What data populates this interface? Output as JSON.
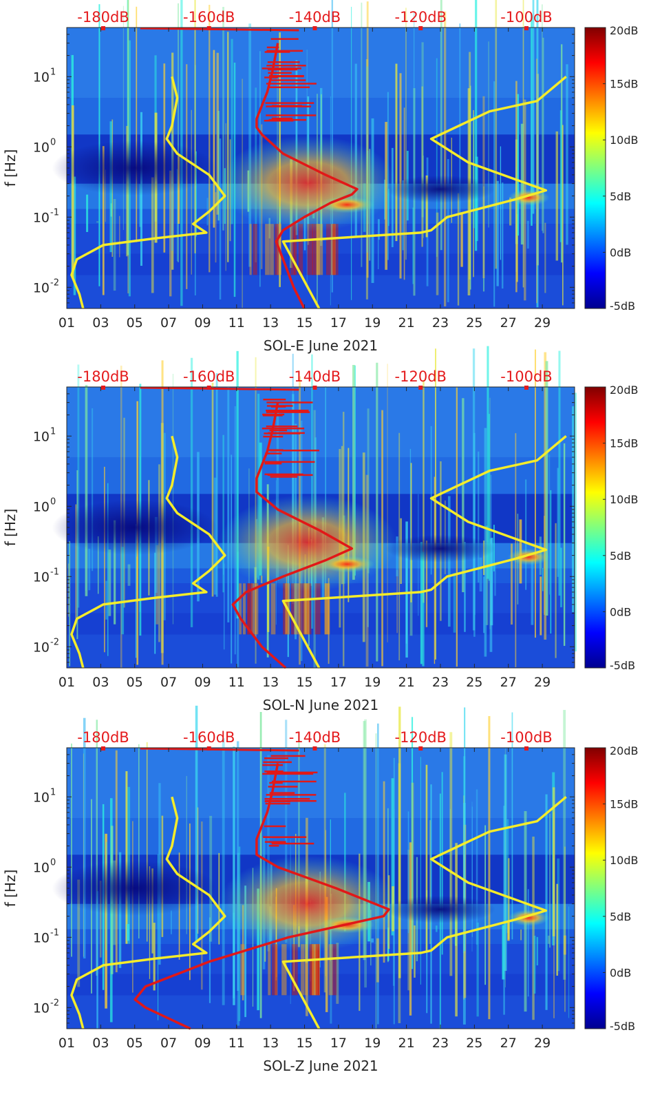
{
  "chart_data": [
    {
      "type": "heatmap",
      "xlabel": "SOL-E June 2021",
      "ylabel": "f [Hz]",
      "x_tick_labels": [
        "01",
        "03",
        "05",
        "07",
        "09",
        "11",
        "13",
        "15",
        "17",
        "19",
        "21",
        "23",
        "25",
        "27",
        "29"
      ],
      "xlim": [
        1,
        30.9
      ],
      "ylim_hz": [
        0.005,
        50
      ],
      "ylog": true,
      "y_tick_labels": [
        "10^-2",
        "10^-1",
        "10^0",
        "10^1"
      ],
      "y_ticks_hz": [
        0.01,
        0.1,
        1,
        10
      ],
      "top_axis_labels": [
        "-180dB",
        "-160dB",
        "-140dB",
        "-120dB",
        "-100dB"
      ],
      "top_axis_db": [
        -180,
        -160,
        -140,
        -120,
        -100
      ],
      "colorbar_labels": [
        "-5dB",
        "0dB",
        "5dB",
        "10dB",
        "15dB",
        "20dB"
      ],
      "colorbar_values": [
        -5,
        0,
        5,
        10,
        15,
        20
      ],
      "yellow_left_db_freq": [
        [
          -183.8,
          0.005
        ],
        [
          -184.5,
          0.008
        ],
        [
          -186,
          0.015
        ],
        [
          -185,
          0.025
        ],
        [
          -180,
          0.04
        ],
        [
          -170,
          0.05
        ],
        [
          -160.5,
          0.06
        ],
        [
          -163,
          0.08
        ],
        [
          -160,
          0.12
        ],
        [
          -157,
          0.2
        ],
        [
          -160,
          0.4
        ],
        [
          -166,
          0.8
        ],
        [
          -168,
          1.3
        ],
        [
          -167,
          2
        ],
        [
          -166,
          5
        ],
        [
          -167,
          10
        ]
      ],
      "yellow_right_db_freq": [
        [
          -139.2,
          0.005
        ],
        [
          -146,
          0.045
        ],
        [
          -120,
          0.06
        ],
        [
          -118,
          0.065
        ],
        [
          -115,
          0.1
        ],
        [
          -102,
          0.18
        ],
        [
          -96.3,
          0.24
        ],
        [
          -111,
          0.6
        ],
        [
          -118,
          1.3
        ],
        [
          -107,
          3.2
        ],
        [
          -98,
          4.5
        ],
        [
          -92.5,
          10
        ]
      ],
      "red_db_freq": [
        [
          -142,
          0.005
        ],
        [
          -144,
          0.01
        ],
        [
          -146,
          0.025
        ],
        [
          -147.3,
          0.045
        ],
        [
          -146,
          0.065
        ],
        [
          -142,
          0.1
        ],
        [
          -137,
          0.16
        ],
        [
          -133,
          0.21
        ],
        [
          -132,
          0.25
        ],
        [
          -138,
          0.4
        ],
        [
          -146,
          0.8
        ],
        [
          -150,
          1.5
        ],
        [
          -151,
          1.9
        ],
        [
          -151,
          2.5
        ],
        [
          -149,
          6
        ],
        [
          -148,
          12
        ],
        [
          -147,
          30
        ]
      ]
    },
    {
      "type": "heatmap",
      "xlabel": "SOL-N June 2021",
      "ylabel": "f [Hz]",
      "x_tick_labels": [
        "01",
        "03",
        "05",
        "07",
        "09",
        "11",
        "13",
        "15",
        "17",
        "19",
        "21",
        "23",
        "25",
        "27",
        "29"
      ],
      "xlim": [
        1,
        30.9
      ],
      "ylim_hz": [
        0.005,
        50
      ],
      "ylog": true,
      "y_tick_labels": [
        "10^-2",
        "10^-1",
        "10^0",
        "10^1"
      ],
      "y_ticks_hz": [
        0.01,
        0.1,
        1,
        10
      ],
      "top_axis_labels": [
        "-180dB",
        "-160dB",
        "-140dB",
        "-120dB",
        "-100dB"
      ],
      "top_axis_db": [
        -180,
        -160,
        -140,
        -120,
        -100
      ],
      "colorbar_labels": [
        "-5dB",
        "0dB",
        "5dB",
        "10dB",
        "15dB",
        "20dB"
      ],
      "colorbar_values": [
        -5,
        0,
        5,
        10,
        15,
        20
      ],
      "yellow_left_db_freq": [
        [
          -183.8,
          0.005
        ],
        [
          -184.5,
          0.008
        ],
        [
          -186,
          0.015
        ],
        [
          -185,
          0.025
        ],
        [
          -180,
          0.04
        ],
        [
          -170,
          0.05
        ],
        [
          -160.5,
          0.06
        ],
        [
          -163,
          0.08
        ],
        [
          -160,
          0.12
        ],
        [
          -157,
          0.2
        ],
        [
          -160,
          0.4
        ],
        [
          -166,
          0.8
        ],
        [
          -168,
          1.3
        ],
        [
          -167,
          2
        ],
        [
          -166,
          5
        ],
        [
          -167,
          10
        ]
      ],
      "yellow_right_db_freq": [
        [
          -139.2,
          0.005
        ],
        [
          -146,
          0.045
        ],
        [
          -120,
          0.06
        ],
        [
          -118,
          0.065
        ],
        [
          -115,
          0.1
        ],
        [
          -102,
          0.18
        ],
        [
          -96.3,
          0.24
        ],
        [
          -111,
          0.6
        ],
        [
          -118,
          1.3
        ],
        [
          -107,
          3.2
        ],
        [
          -98,
          4.5
        ],
        [
          -92.5,
          10
        ]
      ],
      "red_db_freq": [
        [
          -145.5,
          0.005
        ],
        [
          -150,
          0.01
        ],
        [
          -154,
          0.025
        ],
        [
          -155.5,
          0.04
        ],
        [
          -153,
          0.06
        ],
        [
          -146,
          0.1
        ],
        [
          -138,
          0.17
        ],
        [
          -133,
          0.25
        ],
        [
          -139,
          0.45
        ],
        [
          -147,
          0.9
        ],
        [
          -151,
          1.6
        ],
        [
          -151,
          2.5
        ],
        [
          -149,
          6
        ],
        [
          -148,
          12
        ],
        [
          -147,
          30
        ]
      ]
    },
    {
      "type": "heatmap",
      "xlabel": "SOL-Z June 2021",
      "ylabel": "f [Hz]",
      "x_tick_labels": [
        "01",
        "03",
        "05",
        "07",
        "09",
        "11",
        "13",
        "15",
        "17",
        "19",
        "21",
        "23",
        "25",
        "27",
        "29"
      ],
      "xlim": [
        1,
        30.9
      ],
      "ylim_hz": [
        0.005,
        50
      ],
      "ylog": true,
      "y_tick_labels": [
        "10^-2",
        "10^-1",
        "10^0",
        "10^1"
      ],
      "y_ticks_hz": [
        0.01,
        0.1,
        1,
        10
      ],
      "top_axis_labels": [
        "-180dB",
        "-160dB",
        "-140dB",
        "-120dB",
        "-100dB"
      ],
      "top_axis_db": [
        -180,
        -160,
        -140,
        -120,
        -100
      ],
      "colorbar_labels": [
        "-5dB",
        "0dB",
        "5dB",
        "10dB",
        "15dB",
        "20dB"
      ],
      "colorbar_values": [
        -5,
        0,
        5,
        10,
        15,
        20
      ],
      "yellow_left_db_freq": [
        [
          -183.8,
          0.005
        ],
        [
          -184.5,
          0.008
        ],
        [
          -186,
          0.015
        ],
        [
          -185,
          0.025
        ],
        [
          -180,
          0.04
        ],
        [
          -170,
          0.05
        ],
        [
          -160.5,
          0.06
        ],
        [
          -163,
          0.08
        ],
        [
          -160,
          0.12
        ],
        [
          -157,
          0.2
        ],
        [
          -160,
          0.4
        ],
        [
          -166,
          0.8
        ],
        [
          -168,
          1.3
        ],
        [
          -167,
          2
        ],
        [
          -166,
          5
        ],
        [
          -167,
          10
        ]
      ],
      "yellow_right_db_freq": [
        [
          -139.2,
          0.005
        ],
        [
          -146,
          0.045
        ],
        [
          -120,
          0.06
        ],
        [
          -118,
          0.065
        ],
        [
          -115,
          0.1
        ],
        [
          -102,
          0.18
        ],
        [
          -96.3,
          0.24
        ],
        [
          -111,
          0.6
        ],
        [
          -118,
          1.3
        ],
        [
          -107,
          3.2
        ],
        [
          -98,
          4.5
        ],
        [
          -92.5,
          10
        ]
      ],
      "red_db_freq": [
        [
          -163.5,
          0.005
        ],
        [
          -172,
          0.01
        ],
        [
          -174,
          0.013
        ],
        [
          -172,
          0.02
        ],
        [
          -160,
          0.045
        ],
        [
          -145,
          0.1
        ],
        [
          -127,
          0.2
        ],
        [
          -126,
          0.25
        ],
        [
          -136,
          0.5
        ],
        [
          -147,
          1
        ],
        [
          -151,
          1.5
        ],
        [
          -151,
          2.5
        ],
        [
          -149,
          6
        ],
        [
          -148,
          12
        ],
        [
          -147,
          30
        ]
      ]
    }
  ],
  "colors": {
    "label_red": "#e41a1c",
    "curve_red": "#e11818",
    "curve_yellow": "#f5ec2a",
    "axis_text": "#262626"
  }
}
